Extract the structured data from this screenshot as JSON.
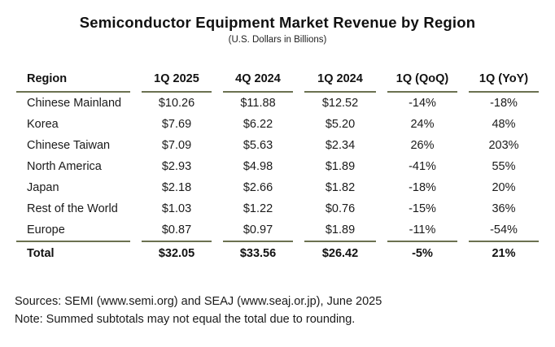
{
  "title": "Semiconductor Equipment Market Revenue by Region",
  "subtitle": "(U.S. Dollars in Billions)",
  "chart_data": {
    "type": "table",
    "title": "Semiconductor Equipment Market Revenue by Region",
    "subtitle": "(U.S. Dollars in Billions)",
    "unit": "U.S. Dollars in Billions",
    "columns": [
      "Region",
      "1Q 2025",
      "4Q 2024",
      "1Q 2024",
      "1Q (QoQ)",
      "1Q (YoY)"
    ],
    "rows": [
      [
        "Chinese Mainland",
        "$10.26",
        "$11.88",
        "$12.52",
        "-14%",
        "-18%"
      ],
      [
        "Korea",
        "$7.69",
        "$6.22",
        "$5.20",
        "24%",
        "48%"
      ],
      [
        "Chinese Taiwan",
        "$7.09",
        "$5.63",
        "$2.34",
        "26%",
        "203%"
      ],
      [
        "North America",
        "$2.93",
        "$4.98",
        "$1.89",
        "-41%",
        "55%"
      ],
      [
        "Japan",
        "$2.18",
        "$2.66",
        "$1.82",
        "-18%",
        "20%"
      ],
      [
        "Rest of the World",
        "$1.03",
        "$1.22",
        "$0.76",
        "-15%",
        "36%"
      ],
      [
        "Europe",
        "$0.87",
        "$0.97",
        "$1.89",
        "-11%",
        "-54%"
      ]
    ],
    "total_row": [
      "Total",
      "$32.05",
      "$33.56",
      "$26.42",
      "-5%",
      "21%"
    ]
  },
  "footer": {
    "sources": "Sources: SEMI (www.semi.org) and SEAJ (www.seaj.or.jp), June 2025",
    "note": "Note: Summed subtotals may not equal the total due to rounding."
  },
  "colors": {
    "background": "#ffffff",
    "text": "#1a1a1a",
    "rule": "#6b7150"
  }
}
